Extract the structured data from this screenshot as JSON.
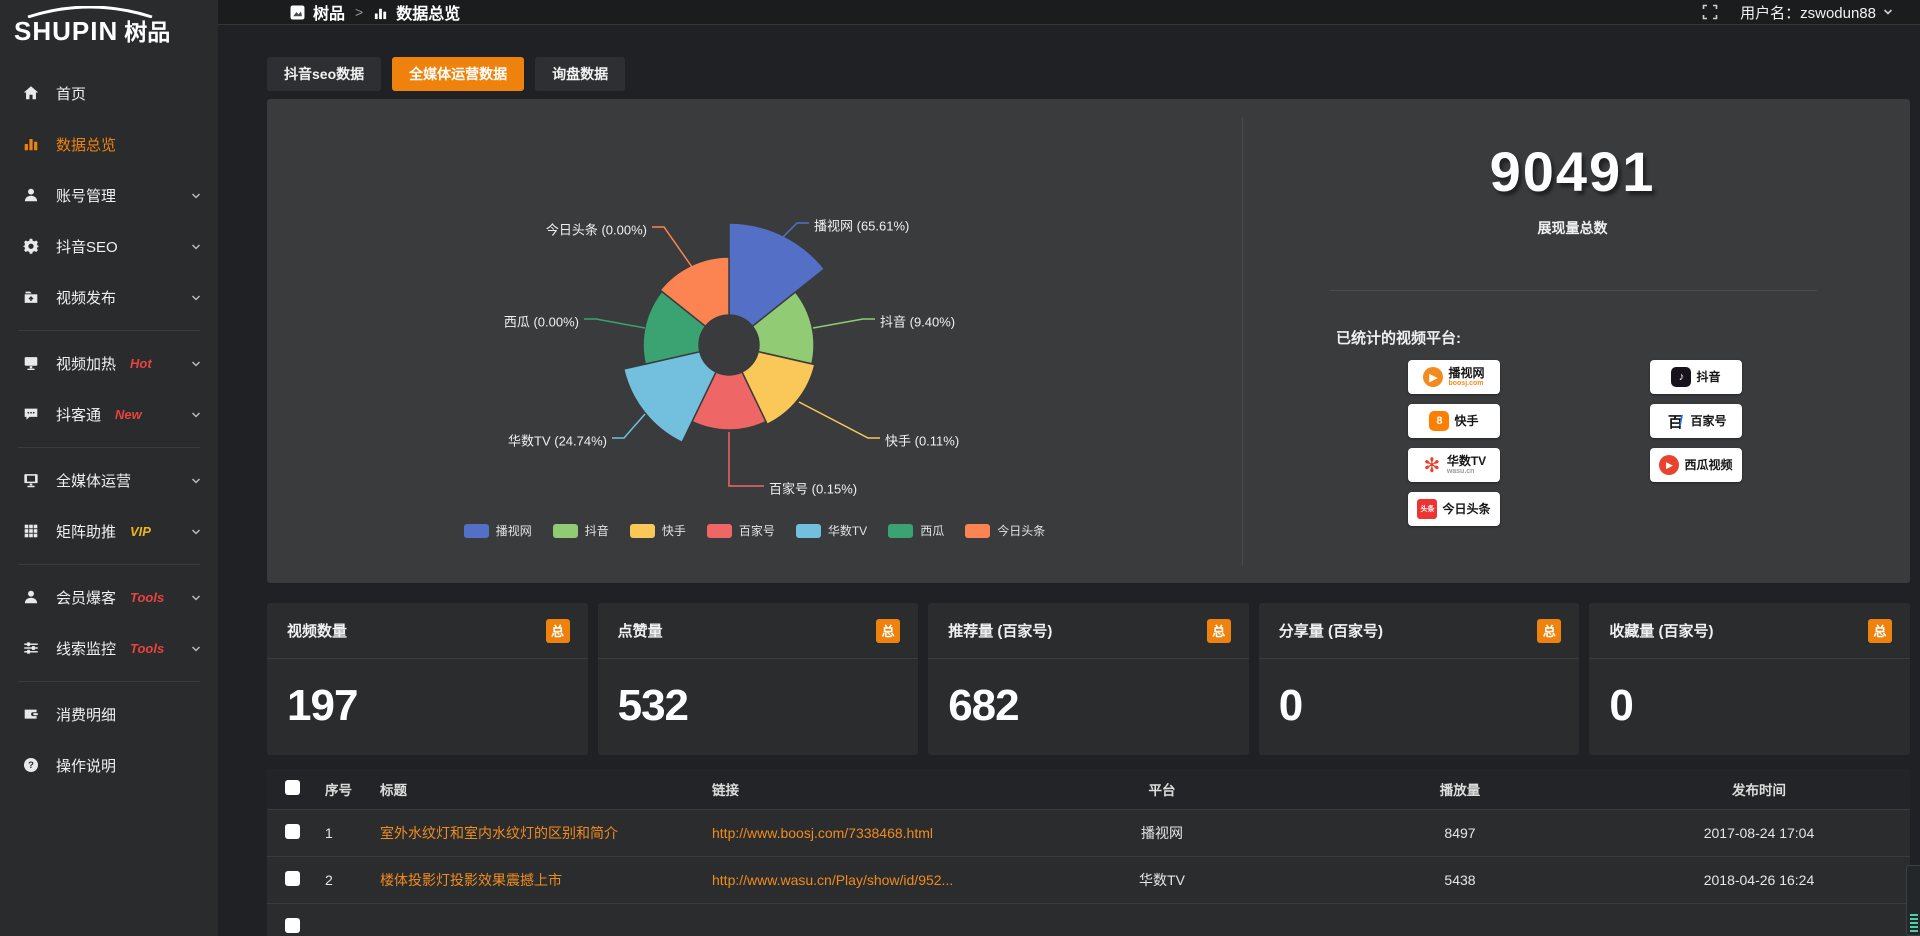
{
  "brand": {
    "logo_en": "SHUPIN",
    "logo_cn": "树品"
  },
  "topbar": {
    "breadcrumb": [
      {
        "label": "树品"
      },
      {
        "label": "数据总览"
      }
    ],
    "username": "用户名：zswodun88"
  },
  "sidebar": {
    "items": [
      {
        "key": "home",
        "label": "首页",
        "icon": "home"
      },
      {
        "key": "data-overview",
        "label": "数据总览",
        "icon": "chart",
        "active": true
      },
      {
        "key": "account-manage",
        "label": "账号管理",
        "icon": "user",
        "chevron": true
      },
      {
        "key": "douyin-seo",
        "label": "抖音SEO",
        "icon": "gear",
        "chevron": true
      },
      {
        "key": "video-publish",
        "label": "视频发布",
        "icon": "publish",
        "chevron": true,
        "divider_after": true
      },
      {
        "key": "video-boost",
        "label": "视频加热",
        "icon": "screen",
        "badge": "Hot",
        "badge_color": "#e8433f",
        "chevron": true
      },
      {
        "key": "douketong",
        "label": "抖客通",
        "icon": "chat",
        "badge": "New",
        "badge_color": "#e8433f",
        "chevron": true,
        "divider_after": true
      },
      {
        "key": "omni-media",
        "label": "全媒体运营",
        "icon": "monitor",
        "chevron": true
      },
      {
        "key": "matrix-boost",
        "label": "矩阵助推",
        "icon": "grid",
        "badge": "VIP",
        "badge_color": "#f0b519",
        "chevron": true,
        "divider_after": true
      },
      {
        "key": "member-baoke",
        "label": "会员爆客",
        "icon": "user",
        "badge": "Tools",
        "badge_color": "#e8433f",
        "chevron": true
      },
      {
        "key": "lead-monitor",
        "label": "线索监控",
        "icon": "sliders",
        "badge": "Tools",
        "badge_color": "#e8433f",
        "chevron": true,
        "divider_after": true
      },
      {
        "key": "consume-detail",
        "label": "消费明细",
        "icon": "wallet"
      },
      {
        "key": "help-guide",
        "label": "操作说明",
        "icon": "help"
      }
    ]
  },
  "tabs": [
    {
      "key": "douyin-seo-data",
      "label": "抖音seo数据"
    },
    {
      "key": "omni-media-data",
      "label": "全媒体运营数据",
      "active": true
    },
    {
      "key": "inquiry-data",
      "label": "询盘数据"
    }
  ],
  "chart_data": {
    "type": "pie",
    "variant": "nightingale-rose-donut",
    "unit": "%",
    "slices": [
      {
        "name": "播视网",
        "pct": "65.61",
        "color": "#5470c6"
      },
      {
        "name": "抖音",
        "pct": "9.40",
        "color": "#91cc75"
      },
      {
        "name": "快手",
        "pct": "0.11",
        "color": "#fac858"
      },
      {
        "name": "百家号",
        "pct": "0.15",
        "color": "#ee6666"
      },
      {
        "name": "华数TV",
        "pct": "24.74",
        "color": "#73c0de"
      },
      {
        "name": "西瓜",
        "pct": "0.00",
        "color": "#3ba272"
      },
      {
        "name": "今日头条",
        "pct": "0.00",
        "color": "#fc8452"
      }
    ],
    "legend_position": "bottom"
  },
  "summary": {
    "total_value": "90491",
    "total_label": "展现量总数",
    "platforms_label": "已统计的视频平台:",
    "platform_badges": {
      "left": [
        {
          "key": "boosj",
          "name": "播视网",
          "sub": "boosj.com"
        },
        {
          "key": "kuaishou",
          "name": "快手"
        },
        {
          "key": "wasu",
          "name": "华数TV",
          "sub": "wasu.cn"
        },
        {
          "key": "toutiao",
          "name": "今日头条"
        }
      ],
      "right": [
        {
          "key": "douyin",
          "name": "抖音"
        },
        {
          "key": "baijiahao",
          "name": "百家号"
        },
        {
          "key": "xigua",
          "name": "西瓜视频"
        }
      ]
    }
  },
  "stat_cards": [
    {
      "label": "视频数量",
      "badge": "总",
      "value": "197"
    },
    {
      "label": "点赞量",
      "badge": "总",
      "value": "532"
    },
    {
      "label": "推荐量 (百家号)",
      "badge": "总",
      "value": "682"
    },
    {
      "label": "分享量 (百家号)",
      "badge": "总",
      "value": "0"
    },
    {
      "label": "收藏量 (百家号)",
      "badge": "总",
      "value": "0"
    }
  ],
  "table": {
    "columns": [
      "序号",
      "标题",
      "链接",
      "平台",
      "播放量",
      "发布时间"
    ],
    "rows": [
      {
        "index": "1",
        "title": "室外水纹灯和室内水纹灯的区别和简介",
        "link": "http://www.boosj.com/7338468.html",
        "platform": "播视网",
        "plays": "8497",
        "time": "2017-08-24 17:04"
      },
      {
        "index": "2",
        "title": "楼体投影灯投影效果震撼上市",
        "link": "http://www.wasu.cn/Play/show/id/952...",
        "platform": "华数TV",
        "plays": "5438",
        "time": "2018-04-26 16:24"
      }
    ]
  },
  "colors": {
    "accent": "#ef820d",
    "panel": "#3a3b3d"
  }
}
